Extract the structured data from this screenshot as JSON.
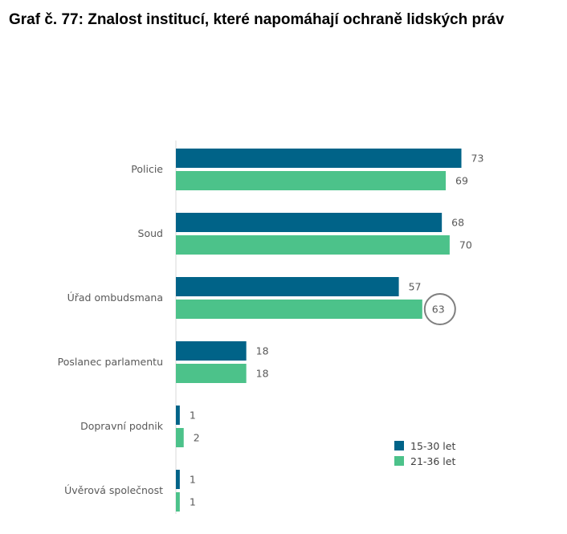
{
  "title": "Graf č. 77: Znalost institucí, které napomáhají ochraně lidských práv",
  "chart_data": {
    "type": "bar",
    "orientation": "horizontal",
    "categories": [
      "Policie",
      "Soud",
      "Úřad ombudsmana",
      "Poslanec parlamentu",
      "Dopravní podnik",
      "Úvěrová společnost"
    ],
    "series": [
      {
        "name": "15-30 let",
        "color": "#006388",
        "values": [
          73,
          68,
          57,
          18,
          1,
          1
        ]
      },
      {
        "name": "21-36 let",
        "color": "#4cc28a",
        "values": [
          69,
          70,
          63,
          18,
          2,
          1
        ]
      }
    ],
    "xlim": [
      0,
      100
    ],
    "grid": false,
    "legend_position": "bottom-right",
    "highlight": {
      "category": "Úřad ombudsmana",
      "series": "21-36 let",
      "value": 63
    }
  }
}
